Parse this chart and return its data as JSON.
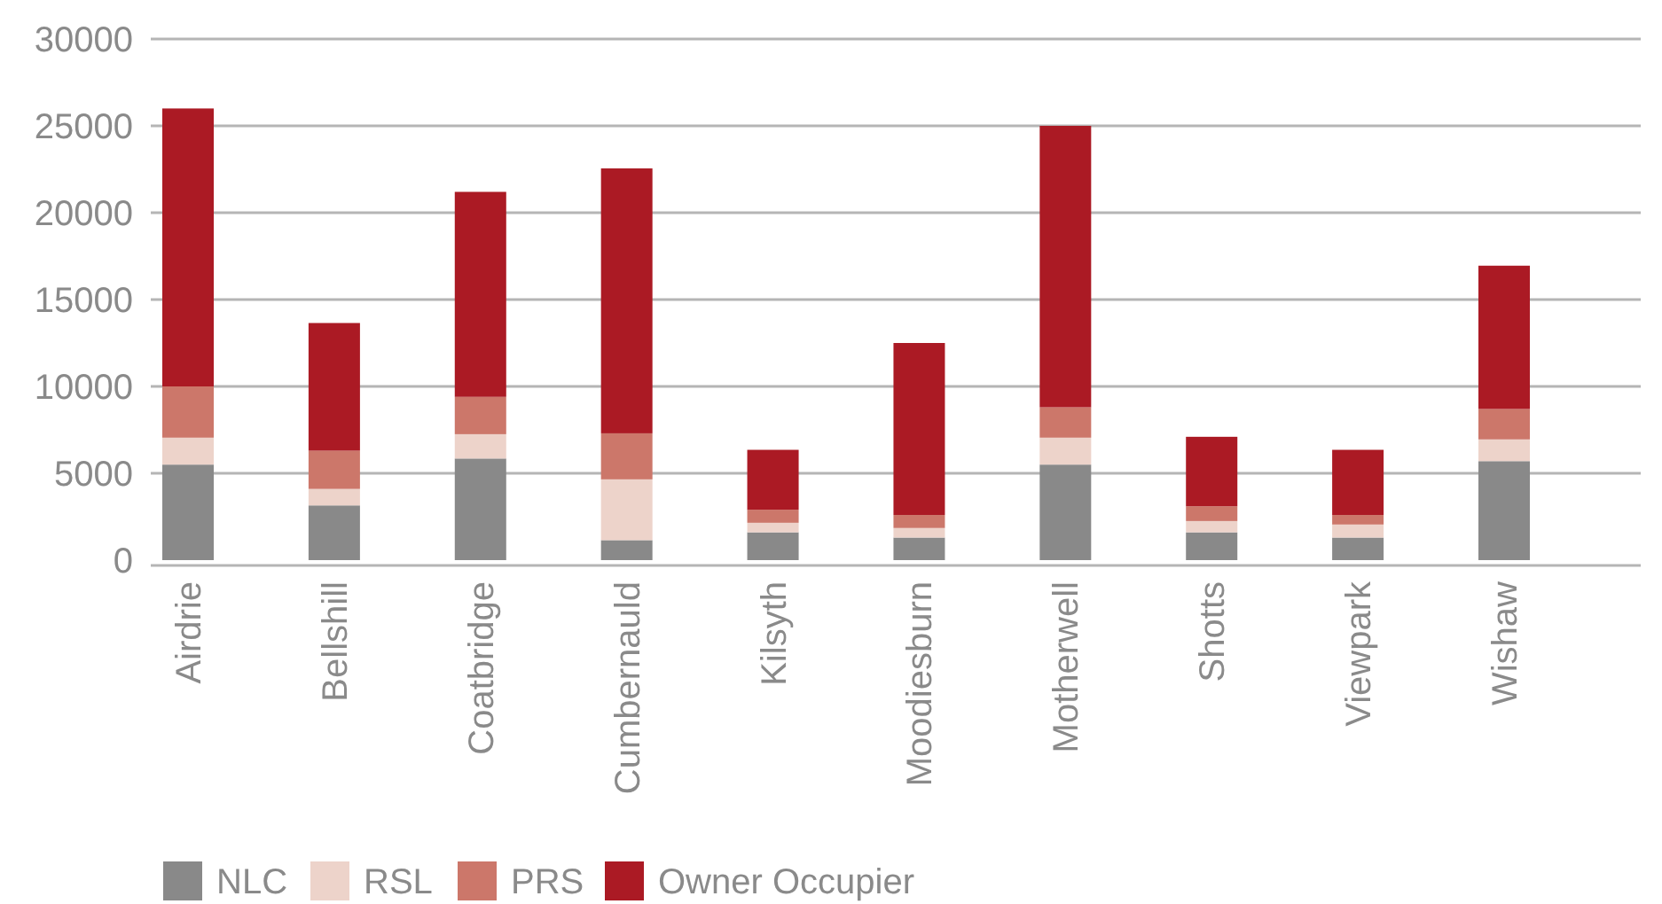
{
  "chart_data": {
    "type": "bar",
    "stacked": true,
    "categories": [
      "Airdrie",
      "Bellshill",
      "Coatbridge",
      "Cumbernauld",
      "Kilsyth",
      "Moodiesburn",
      "Motherwell",
      "Shotts",
      "Viewpark",
      "Wishaw"
    ],
    "series": [
      {
        "name": "NLC",
        "color": "#898989",
        "values": [
          5500,
          3150,
          5850,
          1150,
          1600,
          1300,
          5500,
          1600,
          1300,
          5700
        ]
      },
      {
        "name": "RSL",
        "color": "#edd3ca",
        "values": [
          1550,
          950,
          1400,
          3500,
          550,
          550,
          1550,
          650,
          750,
          1250
        ]
      },
      {
        "name": "PRS",
        "color": "#cc776a",
        "values": [
          2950,
          2200,
          2150,
          2650,
          750,
          750,
          1750,
          850,
          550,
          1750
        ]
      },
      {
        "name": "Owner Occupier",
        "color": "#ab1a24",
        "values": [
          16000,
          7350,
          11800,
          15250,
          3450,
          9900,
          16200,
          4000,
          3750,
          8250
        ]
      }
    ],
    "ylim": [
      0,
      30000
    ],
    "yticks": [
      0,
      5000,
      10000,
      15000,
      20000,
      25000,
      30000
    ],
    "grid": "y",
    "legend": "bottom left"
  }
}
